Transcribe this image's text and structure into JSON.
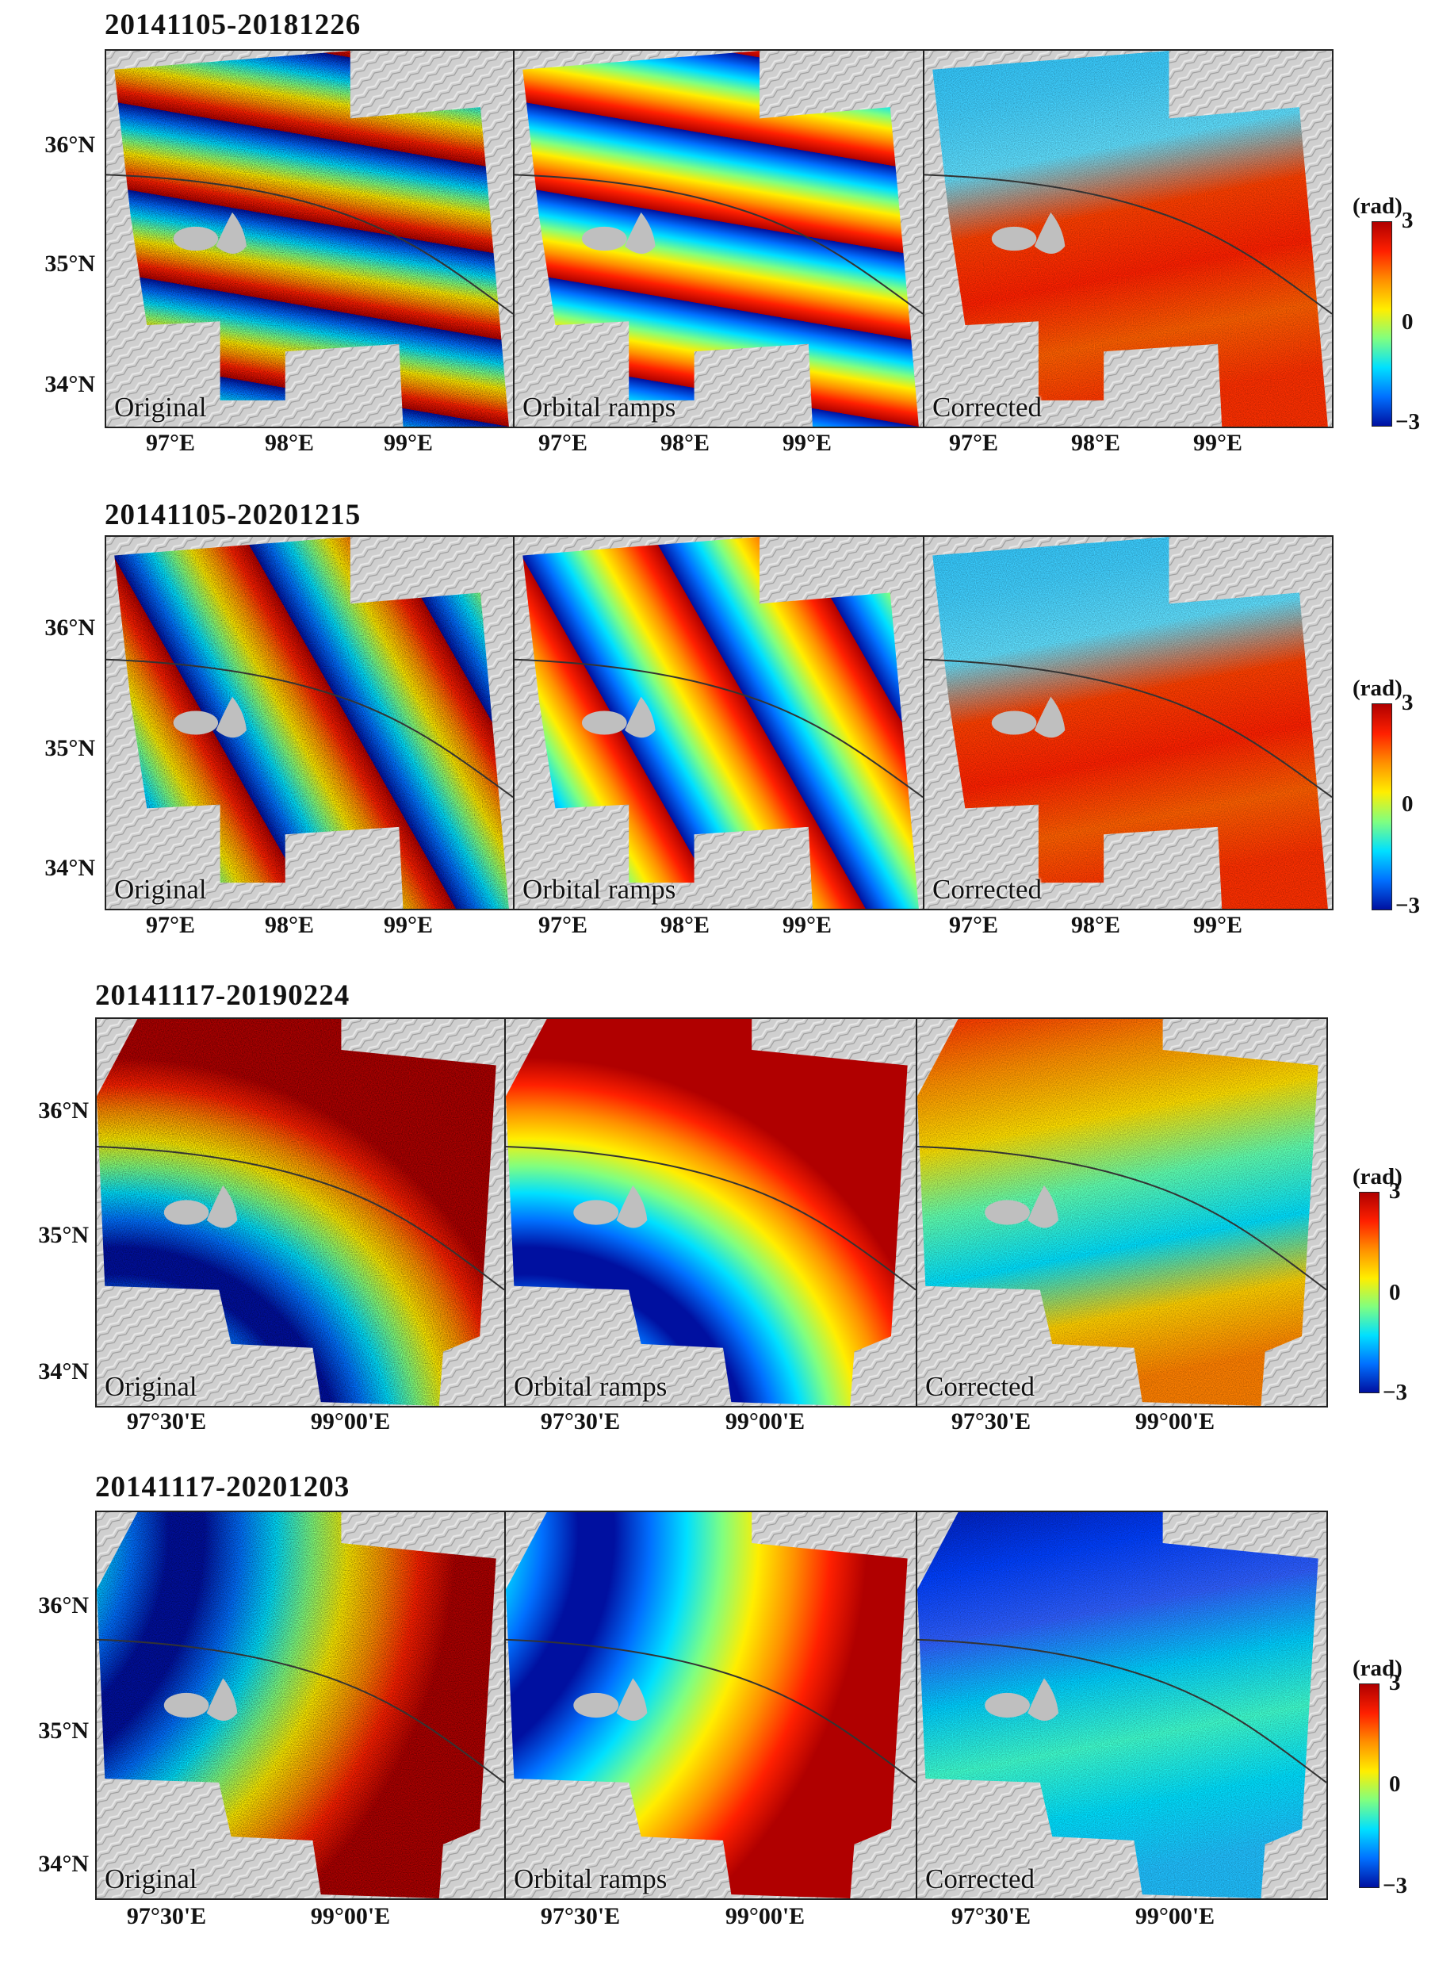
{
  "rows": [
    {
      "title": "20141105-20181226",
      "panels": [
        {
          "label": "Original",
          "type": "original",
          "pattern": "horizontal"
        },
        {
          "label": "Orbital ramps",
          "type": "ramp",
          "pattern": "horizontal"
        },
        {
          "label": "Corrected",
          "type": "corrected",
          "pattern": "horizontal"
        }
      ],
      "y_ticks": [
        "36°N",
        "35°N",
        "34°N"
      ],
      "x_ticks": [
        "97°E",
        "98°E",
        "99°E"
      ],
      "colorbar": {
        "unit": "(rad)",
        "max": "3",
        "mid": "0",
        "min": "−3"
      }
    },
    {
      "title": "20141105-20201215",
      "panels": [
        {
          "label": "Original",
          "type": "original",
          "pattern": "diagonal"
        },
        {
          "label": "Orbital ramps",
          "type": "ramp",
          "pattern": "diagonal"
        },
        {
          "label": "Corrected",
          "type": "corrected",
          "pattern": "diagonal"
        }
      ],
      "y_ticks": [
        "36°N",
        "35°N",
        "34°N"
      ],
      "x_ticks": [
        "97°E",
        "98°E",
        "99°E"
      ],
      "colorbar": {
        "unit": "(rad)",
        "max": "3",
        "mid": "0",
        "min": "−3"
      }
    },
    {
      "title": "20141117-20190224",
      "panels": [
        {
          "label": "Original",
          "type": "original",
          "pattern": "radial"
        },
        {
          "label": "Orbital ramps",
          "type": "ramp",
          "pattern": "radial"
        },
        {
          "label": "Corrected",
          "type": "corrected",
          "pattern": "radial"
        }
      ],
      "y_ticks": [
        "36°N",
        "35°N",
        "34°N"
      ],
      "x_ticks": [
        "97°30'E",
        "99°00'E"
      ],
      "colorbar": {
        "unit": "(rad)",
        "max": "3",
        "mid": "0",
        "min": "−3"
      }
    },
    {
      "title": "20141117-20201203",
      "panels": [
        {
          "label": "Original",
          "type": "original",
          "pattern": "curved"
        },
        {
          "label": "Orbital ramps",
          "type": "ramp",
          "pattern": "curved"
        },
        {
          "label": "Corrected",
          "type": "corrected",
          "pattern": "curved"
        }
      ],
      "y_ticks": [
        "36°N",
        "35°N",
        "34°N"
      ],
      "x_ticks": [
        "97°30'E",
        "99°00'E"
      ],
      "colorbar": {
        "unit": "(rad)",
        "max": "3",
        "mid": "0",
        "min": "−3"
      }
    }
  ],
  "colors": {
    "colormap": [
      "#0010a0",
      "#0070ff",
      "#00e0ff",
      "#80ff80",
      "#ffee00",
      "#ff9000",
      "#ff2000",
      "#b00000"
    ],
    "mask": "#bfbfbf",
    "fault_line": "#333333",
    "hillshade": "#cfcfcf"
  }
}
